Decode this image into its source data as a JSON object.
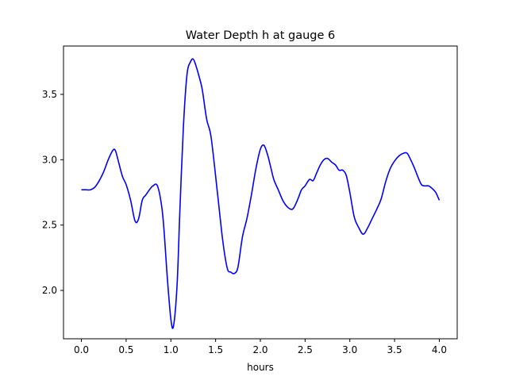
{
  "chart_data": {
    "type": "line",
    "title": "Water Depth h at gauge 6",
    "xlabel": "hours",
    "ylabel": "",
    "xlim": [
      -0.2,
      4.2
    ],
    "ylim": [
      1.63,
      3.87
    ],
    "grid": false,
    "x_ticks": [
      0.0,
      0.5,
      1.0,
      1.5,
      2.0,
      2.5,
      3.0,
      3.5,
      4.0
    ],
    "x_tick_labels": [
      "0.0",
      "0.5",
      "1.0",
      "1.5",
      "2.0",
      "2.5",
      "3.0",
      "3.5",
      "4.0"
    ],
    "y_ticks": [
      2.0,
      2.5,
      3.0,
      3.5
    ],
    "y_tick_labels": [
      "2.0",
      "2.5",
      "3.0",
      "3.5"
    ],
    "series": [
      {
        "color": "#0000ff",
        "x": [
          0.0,
          0.05,
          0.1,
          0.15,
          0.2,
          0.25,
          0.3,
          0.35,
          0.38,
          0.42,
          0.46,
          0.5,
          0.55,
          0.6,
          0.64,
          0.68,
          0.72,
          0.76,
          0.8,
          0.85,
          0.9,
          0.93,
          0.96,
          1.0,
          1.03,
          1.07,
          1.1,
          1.14,
          1.18,
          1.22,
          1.25,
          1.28,
          1.31,
          1.35,
          1.4,
          1.45,
          1.52,
          1.58,
          1.63,
          1.67,
          1.71,
          1.75,
          1.8,
          1.85,
          1.9,
          1.95,
          2.0,
          2.04,
          2.08,
          2.11,
          2.15,
          2.2,
          2.25,
          2.3,
          2.35,
          2.38,
          2.42,
          2.46,
          2.5,
          2.55,
          2.59,
          2.63,
          2.67,
          2.71,
          2.75,
          2.8,
          2.84,
          2.88,
          2.92,
          2.96,
          3.0,
          3.05,
          3.1,
          3.15,
          3.2,
          3.25,
          3.3,
          3.35,
          3.4,
          3.45,
          3.5,
          3.55,
          3.6,
          3.64,
          3.68,
          3.72,
          3.76,
          3.8,
          3.84,
          3.88,
          3.92,
          3.96,
          4.0
        ],
        "y": [
          2.77,
          2.77,
          2.77,
          2.79,
          2.84,
          2.91,
          3.0,
          3.07,
          3.07,
          2.97,
          2.87,
          2.81,
          2.69,
          2.53,
          2.55,
          2.69,
          2.73,
          2.77,
          2.8,
          2.8,
          2.63,
          2.4,
          2.1,
          1.78,
          1.73,
          2.05,
          2.6,
          3.25,
          3.65,
          3.75,
          3.77,
          3.72,
          3.65,
          3.54,
          3.31,
          3.17,
          2.75,
          2.38,
          2.17,
          2.14,
          2.13,
          2.18,
          2.41,
          2.55,
          2.73,
          2.93,
          3.08,
          3.11,
          3.04,
          2.96,
          2.85,
          2.77,
          2.69,
          2.64,
          2.62,
          2.64,
          2.7,
          2.77,
          2.8,
          2.85,
          2.84,
          2.9,
          2.96,
          3.0,
          3.01,
          2.98,
          2.96,
          2.92,
          2.92,
          2.88,
          2.75,
          2.56,
          2.48,
          2.43,
          2.48,
          2.55,
          2.62,
          2.7,
          2.83,
          2.93,
          2.99,
          3.03,
          3.05,
          3.05,
          3.0,
          2.94,
          2.87,
          2.81,
          2.8,
          2.8,
          2.78,
          2.75,
          2.69
        ]
      }
    ]
  }
}
